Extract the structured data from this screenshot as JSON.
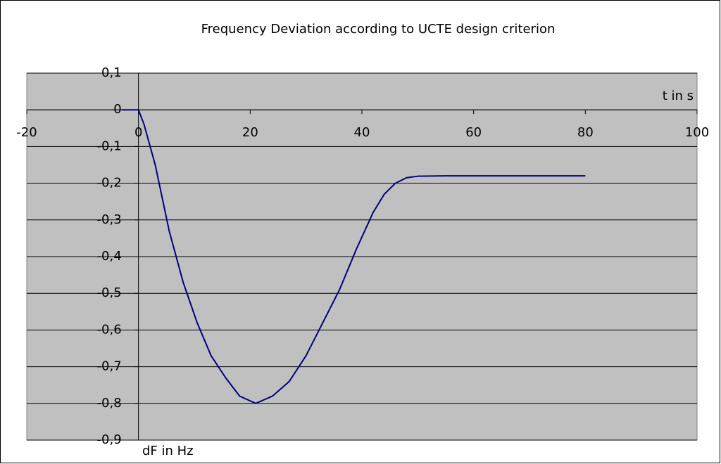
{
  "chart_data": {
    "type": "line",
    "title": "Frequency Deviation according to UCTE design criterion",
    "xlabel": "t in s",
    "ylabel": "dF in Hz",
    "series": [
      {
        "name": "dF",
        "color": "#000080",
        "x": [
          -3,
          0,
          1,
          3,
          5.5,
          8,
          10.5,
          13,
          15.6,
          18.1,
          21,
          24,
          27,
          30,
          33,
          36,
          39,
          42,
          44,
          46,
          48,
          50,
          55,
          60,
          70,
          80
        ],
        "values": [
          0,
          0,
          -0.04,
          -0.15,
          -0.33,
          -0.47,
          -0.58,
          -0.67,
          -0.73,
          -0.78,
          -0.8,
          -0.78,
          -0.74,
          -0.67,
          -0.58,
          -0.49,
          -0.38,
          -0.28,
          -0.23,
          -0.2,
          -0.185,
          -0.181,
          -0.18,
          -0.18,
          -0.18,
          -0.18
        ]
      }
    ],
    "xlim": [
      -20,
      100
    ],
    "xticks": [
      -20,
      0,
      20,
      40,
      60,
      80,
      100
    ],
    "ylim": [
      -0.9,
      0.1
    ],
    "yticks": [
      {
        "value": -0.9,
        "label": "-0,9"
      },
      {
        "value": -0.8,
        "label": "-0,8"
      },
      {
        "value": -0.7,
        "label": "-0,7"
      },
      {
        "value": -0.6,
        "label": "-0,6"
      },
      {
        "value": -0.5,
        "label": "-0,5"
      },
      {
        "value": -0.4,
        "label": "-0,4"
      },
      {
        "value": -0.3,
        "label": "-0,3"
      },
      {
        "value": -0.2,
        "label": "-0,2"
      },
      {
        "value": -0.1,
        "label": "-0,1"
      },
      0,
      {
        "value": 0.1,
        "label": "0,1"
      }
    ],
    "grid": true
  }
}
